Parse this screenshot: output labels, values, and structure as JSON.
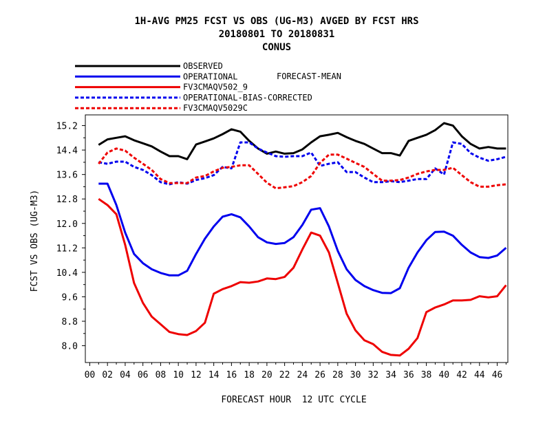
{
  "chart_data": {
    "type": "line",
    "title_lines": [
      "1H-AVG PM25 FCST VS OBS (UG-M3)  AVGED BY FCST HRS",
      "20180801 TO 20180831",
      "CONUS"
    ],
    "xlabel": "FORECAST HOUR  12 UTC CYCLE",
    "ylabel": "FCST VS OBS (UG-M3)",
    "xlim": [
      -0.5,
      47.2
    ],
    "ylim": [
      7.45,
      15.55
    ],
    "xticks": [
      "00",
      "02",
      "04",
      "06",
      "08",
      "10",
      "12",
      "14",
      "16",
      "18",
      "20",
      "22",
      "24",
      "26",
      "28",
      "30",
      "32",
      "34",
      "36",
      "38",
      "40",
      "42",
      "44",
      "46"
    ],
    "yticks": [
      "8.0",
      "8.8",
      "9.6",
      "10.4",
      "11.2",
      "12.0",
      "12.8",
      "13.6",
      "14.4",
      "15.2"
    ],
    "grid": false,
    "legend_placement": "top-left",
    "legend_note": "FORECAST-MEAN",
    "x": [
      1,
      2,
      3,
      4,
      5,
      6,
      7,
      8,
      9,
      10,
      11,
      12,
      13,
      14,
      15,
      16,
      17,
      18,
      19,
      20,
      21,
      22,
      23,
      24,
      25,
      26,
      27,
      28,
      29,
      30,
      31,
      32,
      33,
      34,
      35,
      36,
      37,
      38,
      39,
      40,
      41,
      42,
      43,
      44,
      45,
      46,
      47
    ],
    "series": [
      {
        "name": "OBSERVED",
        "color": "#000000",
        "dash": "solid",
        "values": [
          14.57,
          14.75,
          14.8,
          14.85,
          14.72,
          14.62,
          14.52,
          14.35,
          14.2,
          14.2,
          14.1,
          14.58,
          14.68,
          14.78,
          14.92,
          15.08,
          15.0,
          14.7,
          14.45,
          14.28,
          14.35,
          14.28,
          14.3,
          14.42,
          14.65,
          14.85,
          14.9,
          14.96,
          14.82,
          14.7,
          14.6,
          14.45,
          14.3,
          14.3,
          14.22,
          14.7,
          14.8,
          14.9,
          15.05,
          15.28,
          15.2,
          14.85,
          14.6,
          14.45,
          14.5,
          14.45,
          14.45
        ]
      },
      {
        "name": "OPERATIONAL",
        "color": "#0000ee",
        "dash": "solid",
        "values": [
          13.3,
          13.3,
          12.6,
          11.7,
          11.0,
          10.7,
          10.5,
          10.38,
          10.3,
          10.3,
          10.45,
          11.0,
          11.5,
          11.9,
          12.22,
          12.3,
          12.2,
          11.9,
          11.55,
          11.38,
          11.33,
          11.36,
          11.55,
          11.95,
          12.45,
          12.5,
          11.9,
          11.1,
          10.5,
          10.15,
          9.95,
          9.82,
          9.73,
          9.72,
          9.88,
          10.55,
          11.05,
          11.45,
          11.72,
          11.73,
          11.6,
          11.3,
          11.05,
          10.9,
          10.87,
          10.95,
          11.2
        ]
      },
      {
        "name": "FV3CMAQV502_9",
        "color": "#ee0000",
        "dash": "solid",
        "values": [
          12.8,
          12.6,
          12.3,
          11.3,
          10.05,
          9.4,
          8.95,
          8.7,
          8.45,
          8.38,
          8.35,
          8.48,
          8.75,
          9.7,
          9.85,
          9.95,
          10.08,
          10.06,
          10.1,
          10.2,
          10.18,
          10.25,
          10.55,
          11.15,
          11.7,
          11.6,
          11.05,
          10.05,
          9.05,
          8.5,
          8.18,
          8.05,
          7.8,
          7.7,
          7.68,
          7.9,
          8.25,
          9.1,
          9.25,
          9.35,
          9.48,
          9.48,
          9.5,
          9.62,
          9.58,
          9.62,
          9.98
        ]
      },
      {
        "name": "OPERATIONAL-BIAS-CORRECTED",
        "color": "#0000ee",
        "dash": "dashed",
        "values": [
          14.0,
          13.95,
          14.02,
          14.02,
          13.85,
          13.75,
          13.58,
          13.35,
          13.28,
          13.35,
          13.3,
          13.42,
          13.48,
          13.58,
          13.85,
          13.8,
          14.65,
          14.65,
          14.45,
          14.32,
          14.2,
          14.18,
          14.2,
          14.2,
          14.32,
          13.88,
          13.95,
          14.0,
          13.68,
          13.68,
          13.5,
          13.35,
          13.35,
          13.38,
          13.35,
          13.4,
          13.45,
          13.45,
          13.8,
          13.6,
          14.65,
          14.6,
          14.3,
          14.15,
          14.05,
          14.1,
          14.18
        ]
      },
      {
        "name": "FV3CMAQV5029C",
        "color": "#ee0000",
        "dash": "dashed",
        "values": [
          13.95,
          14.32,
          14.45,
          14.38,
          14.15,
          13.95,
          13.75,
          13.45,
          13.32,
          13.32,
          13.32,
          13.5,
          13.55,
          13.7,
          13.82,
          13.85,
          13.9,
          13.9,
          13.62,
          13.33,
          13.15,
          13.18,
          13.22,
          13.35,
          13.55,
          13.98,
          14.25,
          14.25,
          14.12,
          13.98,
          13.85,
          13.62,
          13.4,
          13.4,
          13.42,
          13.5,
          13.62,
          13.7,
          13.75,
          13.75,
          13.82,
          13.58,
          13.35,
          13.2,
          13.2,
          13.25,
          13.28
        ]
      }
    ]
  }
}
